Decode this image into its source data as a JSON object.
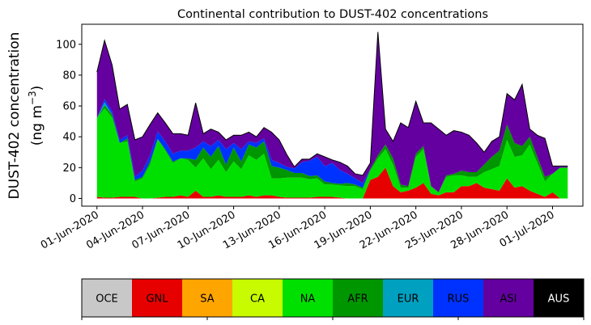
{
  "chart_data": {
    "type": "area",
    "stacked": true,
    "title": "Continental contribution to DUST-402 concentrations",
    "ylabel_line1": "DUST-402 concentration",
    "ylabel_line2_prefix": "(ng m",
    "ylabel_line2_exp": "−3",
    "ylabel_line2_suffix": ")",
    "xlabel": "",
    "ylim": [
      -5,
      113
    ],
    "yticks": [
      0,
      20,
      40,
      60,
      80,
      100
    ],
    "xlim": [
      "2020-05-31",
      "2020-07-03"
    ],
    "xticks": [
      "01-Jun-2020",
      "04-Jun-2020",
      "07-Jun-2020",
      "10-Jun-2020",
      "13-Jun-2020",
      "16-Jun-2020",
      "19-Jun-2020",
      "22-Jun-2020",
      "25-Jun-2020",
      "28-Jun-2020",
      "01-Jul-2020"
    ],
    "x_dates": [
      "2020-06-01T00",
      "2020-06-01T12",
      "2020-06-02T00",
      "2020-06-02T12",
      "2020-06-03T00",
      "2020-06-03T12",
      "2020-06-04T00",
      "2020-06-04T12",
      "2020-06-05T00",
      "2020-06-05T12",
      "2020-06-06T00",
      "2020-06-06T12",
      "2020-06-07T00",
      "2020-06-07T12",
      "2020-06-08T00",
      "2020-06-08T12",
      "2020-06-09T00",
      "2020-06-09T12",
      "2020-06-10T00",
      "2020-06-10T12",
      "2020-06-11T00",
      "2020-06-11T12",
      "2020-06-12T00",
      "2020-06-12T12",
      "2020-06-13T00",
      "2020-06-13T12",
      "2020-06-14T00",
      "2020-06-14T12",
      "2020-06-15T00",
      "2020-06-15T12",
      "2020-06-16T00",
      "2020-06-16T12",
      "2020-06-17T00",
      "2020-06-17T12",
      "2020-06-18T00",
      "2020-06-18T12",
      "2020-06-19T00",
      "2020-06-19T12",
      "2020-06-20T00",
      "2020-06-20T12",
      "2020-06-21T00",
      "2020-06-21T12",
      "2020-06-22T00",
      "2020-06-22T12",
      "2020-06-23T00",
      "2020-06-23T12",
      "2020-06-24T00",
      "2020-06-24T12",
      "2020-06-25T00",
      "2020-06-25T12",
      "2020-06-26T00",
      "2020-06-26T12",
      "2020-06-27T00",
      "2020-06-27T12",
      "2020-06-28T00",
      "2020-06-28T12",
      "2020-06-29T00",
      "2020-06-29T12",
      "2020-06-30T00",
      "2020-06-30T12",
      "2020-07-01T00",
      "2020-07-01T12",
      "2020-07-02T00"
    ],
    "series": [
      {
        "name": "OCE",
        "color": "#c8c8c8",
        "values": [
          0,
          0,
          0,
          0,
          0,
          0,
          0,
          0,
          0,
          0,
          0,
          0,
          0,
          0,
          0,
          0,
          0,
          0,
          0,
          0,
          0,
          0,
          0,
          0,
          0,
          0,
          0,
          0,
          0,
          0,
          0,
          0,
          0,
          0,
          0,
          0,
          0,
          0,
          0,
          0,
          0,
          0,
          0,
          0,
          0,
          0,
          0,
          0,
          0,
          0,
          0,
          0,
          0,
          0,
          0,
          0,
          0,
          0,
          0,
          0,
          0,
          0,
          0
        ]
      },
      {
        "name": "GNL",
        "color": "#e60000",
        "values": [
          1,
          0.5,
          0.5,
          1,
          1,
          1,
          0,
          0,
          0.5,
          1,
          1,
          2,
          1,
          5,
          1,
          1,
          2,
          1,
          1,
          1,
          2,
          1,
          2,
          2,
          1,
          0.5,
          0.5,
          0.5,
          0.5,
          1,
          1,
          1,
          0.5,
          0,
          0,
          0,
          12,
          14,
          20,
          8,
          4,
          5,
          7,
          10,
          3,
          2,
          4,
          4,
          8,
          8,
          10,
          7,
          6,
          5,
          13,
          7,
          8,
          5,
          3,
          1,
          4,
          0,
          0
        ]
      },
      {
        "name": "SA",
        "color": "#ffa500",
        "values": [
          0,
          0,
          0,
          0,
          0,
          0,
          0,
          0,
          0,
          0,
          0,
          0,
          0,
          0,
          0,
          0,
          0,
          0,
          0,
          0,
          0,
          0,
          0,
          0,
          0,
          0,
          0,
          0,
          0,
          0,
          0,
          0,
          0,
          0,
          0,
          0,
          0,
          0,
          0,
          0,
          0,
          0,
          0,
          0,
          0,
          0,
          0,
          0,
          0,
          0,
          0,
          0,
          0,
          0,
          0,
          0,
          0,
          0,
          0,
          0,
          0,
          0,
          0
        ]
      },
      {
        "name": "CA",
        "color": "#c8fa00",
        "values": [
          0,
          0,
          0,
          0,
          0,
          0,
          0,
          0,
          0,
          0,
          0,
          0,
          0,
          0,
          0,
          0,
          0,
          0,
          0,
          0,
          0,
          0,
          0,
          0,
          0,
          0,
          0,
          0,
          0,
          0,
          0,
          0,
          0,
          0,
          0,
          0,
          0,
          0,
          0,
          0,
          0,
          0,
          0,
          0,
          0,
          0,
          0,
          0,
          0,
          0,
          0,
          0,
          0,
          0,
          0,
          0,
          0,
          0,
          0,
          0,
          0,
          0,
          0
        ]
      },
      {
        "name": "NA",
        "color": "#00e000",
        "values": [
          51,
          58,
          52,
          35,
          36,
          10,
          13,
          22,
          38,
          30,
          22,
          24,
          24,
          15,
          25,
          18,
          23,
          16,
          23,
          18,
          26,
          24,
          27,
          11,
          12,
          13,
          13,
          13,
          12,
          12,
          8,
          8,
          8,
          8,
          8,
          6,
          6,
          12,
          12,
          14,
          3,
          2,
          20,
          22,
          5,
          2,
          10,
          11,
          7,
          6,
          4,
          10,
          13,
          16,
          25,
          20,
          20,
          30,
          20,
          10,
          12,
          20,
          20
        ]
      },
      {
        "name": "AFR",
        "color": "#009600",
        "values": [
          0,
          2,
          2,
          0,
          2,
          1,
          1,
          2,
          0,
          1,
          1,
          0,
          1,
          5,
          7,
          8,
          9,
          5,
          9,
          5,
          7,
          8,
          8,
          8,
          7,
          5,
          3,
          3,
          2,
          2,
          2,
          1,
          1,
          2,
          1,
          1,
          1,
          2,
          3,
          4,
          2,
          1,
          2,
          2,
          0,
          0,
          1,
          1,
          3,
          3,
          3,
          5,
          8,
          10,
          10,
          9,
          6,
          5,
          4,
          3,
          0,
          0,
          0
        ]
      },
      {
        "name": "EUR",
        "color": "#00a0c0",
        "values": [
          0,
          2,
          0,
          0,
          0,
          0,
          0,
          0,
          0,
          0,
          0,
          0,
          0,
          0,
          0,
          0,
          0,
          0,
          0,
          0,
          0,
          0,
          0,
          0,
          0,
          0,
          0,
          0,
          0,
          0,
          0,
          0,
          0,
          0,
          0,
          0,
          0,
          0,
          0,
          0,
          0,
          0,
          0,
          0,
          0,
          0,
          0,
          0,
          0,
          0,
          0,
          0,
          0,
          0,
          0,
          0,
          0,
          0,
          0,
          0,
          0,
          0,
          0
        ]
      },
      {
        "name": "RUS",
        "color": "#0032ff",
        "values": [
          0,
          2,
          2,
          2,
          2,
          2,
          4,
          4,
          5,
          5,
          5,
          5,
          5,
          8,
          4,
          7,
          4,
          10,
          3,
          8,
          2,
          3,
          2,
          4,
          3,
          2,
          3,
          7,
          10,
          12,
          10,
          13,
          9,
          6,
          4,
          3,
          0,
          0,
          0,
          0,
          0,
          0,
          0,
          0,
          0,
          0,
          0,
          0,
          0,
          0,
          0,
          0,
          0,
          0,
          0,
          0,
          0,
          0,
          0,
          0,
          0,
          0,
          0
        ]
      },
      {
        "name": "ASI",
        "color": "#6400a0",
        "values": [
          30,
          38,
          30,
          20,
          20,
          24,
          22,
          20,
          12,
          12,
          13,
          11,
          10,
          29,
          5,
          11,
          5,
          6,
          5,
          9,
          6,
          4,
          7,
          18,
          15,
          8,
          1,
          2,
          1,
          2,
          6,
          2,
          5,
          5,
          3,
          5,
          4,
          80,
          10,
          11,
          40,
          38,
          34,
          15,
          41,
          41,
          26,
          28,
          25,
          24,
          19,
          8,
          10,
          9,
          20,
          28,
          40,
          5,
          14,
          25,
          5,
          1,
          1
        ]
      },
      {
        "name": "AUS",
        "color": "#000000",
        "values": [
          0,
          0,
          0,
          0,
          0,
          0,
          0,
          0,
          0,
          0,
          0,
          0,
          0,
          0,
          0,
          0,
          0,
          0,
          0,
          0,
          0,
          0,
          0,
          0,
          0,
          0,
          0,
          0,
          0,
          0,
          0,
          0,
          0,
          0,
          0,
          0,
          0,
          0,
          0,
          0,
          0,
          0,
          0,
          0,
          0,
          0,
          0,
          0,
          0,
          0,
          0,
          0,
          0,
          0,
          0,
          0,
          0,
          0,
          0,
          0,
          0,
          0,
          0
        ]
      }
    ],
    "legend_placement": "colorbar-bottom",
    "legend_labels": [
      "OCE",
      "GNL",
      "SA",
      "CA",
      "NA",
      "AFR",
      "EUR",
      "RUS",
      "ASI",
      "AUS"
    ],
    "legend_text_colors": [
      "#000000",
      "#000000",
      "#000000",
      "#000000",
      "#000000",
      "#000000",
      "#000000",
      "#000000",
      "#000000",
      "#ffffff"
    ],
    "grid": false
  }
}
